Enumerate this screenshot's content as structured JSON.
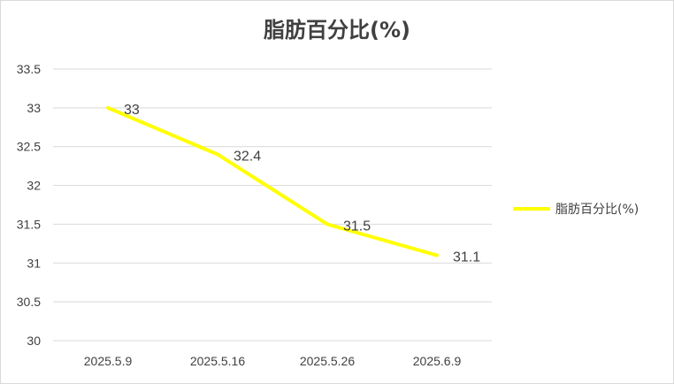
{
  "chart_data": {
    "type": "line",
    "title": "脂肪百分比(%)",
    "categories": [
      "2025.5.9",
      "2025.5.16",
      "2025.5.26",
      "2025.6.9"
    ],
    "series": [
      {
        "name": "脂肪百分比(%)",
        "values": [
          33,
          32.4,
          31.5,
          31.1
        ],
        "color": "#ffff00"
      }
    ],
    "y_ticks": [
      "33.5",
      "33",
      "32.5",
      "32",
      "31.5",
      "31",
      "30.5",
      "30"
    ],
    "data_labels": [
      "33",
      "32.4",
      "31.5",
      "31.1"
    ],
    "ylim": [
      30,
      33.5
    ],
    "xlabel": "",
    "ylabel": "",
    "grid": true,
    "legend": "right"
  }
}
